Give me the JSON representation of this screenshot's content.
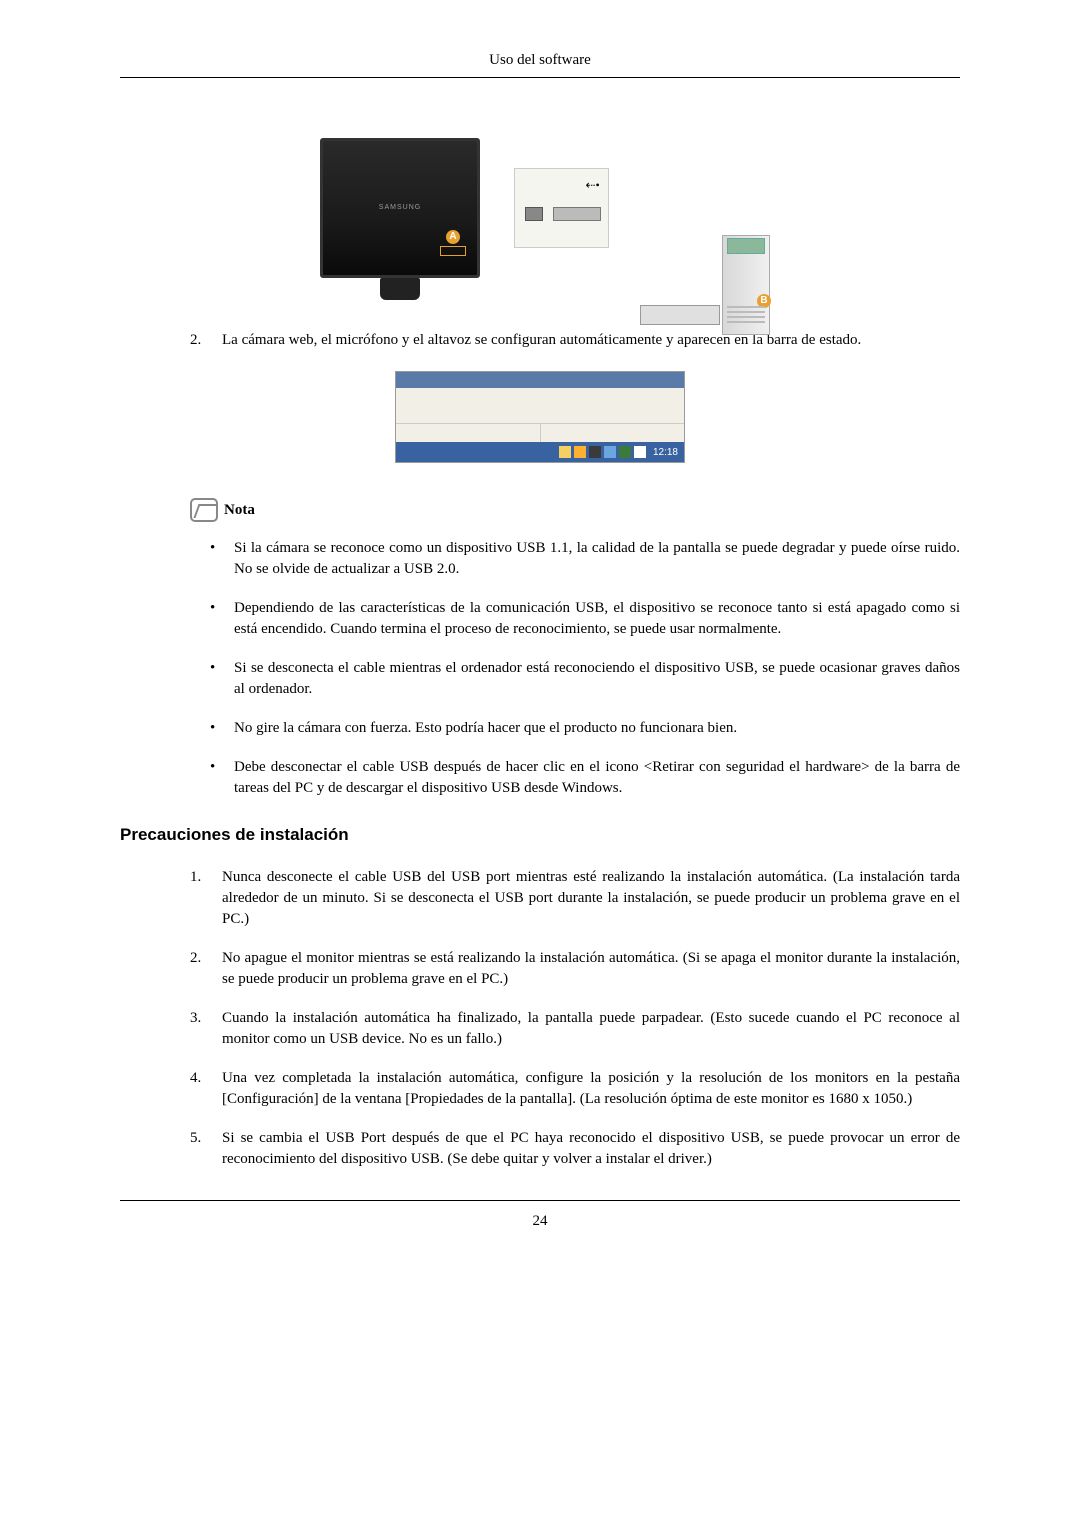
{
  "page": {
    "header": "Uso del software",
    "number": "24"
  },
  "diagram": {
    "brand": "SAMSUNG",
    "badgeA": "A",
    "badgeB": "B"
  },
  "list2": {
    "num": "2.",
    "text": "La cámara web, el micrófono y el altavoz se configuran automáticamente y aparecen en la barra de estado."
  },
  "taskbar": {
    "clock": "12:18",
    "tray_colors": [
      "#f5d060",
      "#ffb030",
      "#3a3a3a",
      "#6aa6e0",
      "#3a7a3a",
      "#ffffff"
    ]
  },
  "nota": {
    "label": "Nota"
  },
  "notes": [
    "Si la cámara se reconoce como un dispositivo USB 1.1, la calidad de la pantalla se puede degradar y puede oírse ruido. No se olvide de actualizar a USB 2.0.",
    "Dependiendo de las características de la comunicación USB, el dispositivo se reconoce tanto si está apagado como si está encendido. Cuando termina el proceso de reconocimiento, se puede usar normalmente.",
    "Si se desconecta el cable mientras el ordenador está reconociendo el dispositivo USB, se puede ocasionar graves daños al ordenador.",
    "No gire la cámara con fuerza. Esto podría hacer que el producto no funcionara bien.",
    "Debe desconectar el cable USB después de hacer clic en el icono <Retirar con seguridad el hardware> de la barra de tareas del PC y de descargar el dispositivo USB desde Windows."
  ],
  "section": {
    "title": "Precauciones de instalación"
  },
  "precautions": [
    {
      "n": "1.",
      "t": "Nunca desconecte el cable USB del USB port mientras esté realizando la instalación automática. (La instalación tarda alrededor de un minuto. Si se desconecta el USB port durante la instalación, se puede producir un problema grave en el PC.)"
    },
    {
      "n": "2.",
      "t": "No apague el monitor mientras se está realizando la instalación automática. (Si se apaga el monitor durante la instalación, se puede producir un problema grave en el PC.)"
    },
    {
      "n": "3.",
      "t": "Cuando la instalación automática ha finalizado, la pantalla puede parpadear. (Esto sucede cuando el PC reconoce al monitor como un USB device. No es un fallo.)"
    },
    {
      "n": "4.",
      "t": "Una vez completada la instalación automática, configure la posición y la resolución de los monitors en la pestaña [Configuración] de la ventana [Propiedades de la pantalla]. (La resolución óptima de este monitor es 1680 x 1050.)"
    },
    {
      "n": "5.",
      "t": "Si se cambia el USB Port después de que el PC haya reconocido el dispositivo USB, se puede provocar un error de reconocimiento del dispositivo USB. (Se debe quitar y volver a instalar el driver.)"
    }
  ],
  "colors": {
    "titlebar": "#5a7aa8",
    "traybar": "#3862a0",
    "body_bg": "#f2f0e6",
    "badge": "#e8a030"
  }
}
